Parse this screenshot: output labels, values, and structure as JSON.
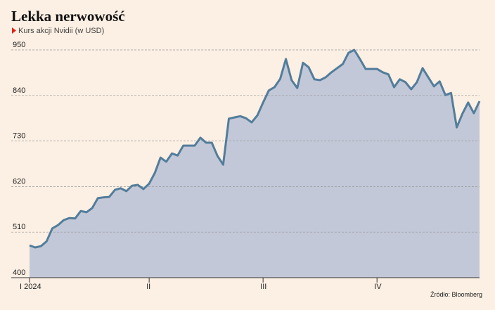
{
  "chart_data": {
    "type": "area",
    "title": "Lekka nerwowość",
    "subtitle": "Kurs akcji Nvidii (w USD)",
    "source": "Źródło: Bloomberg",
    "categories": [
      "I 2024",
      null,
      null,
      null,
      null,
      null,
      null,
      null,
      null,
      null,
      null,
      null,
      null,
      null,
      null,
      null,
      null,
      null,
      null,
      null,
      null,
      "II",
      null,
      null,
      null,
      null,
      null,
      null,
      null,
      null,
      null,
      null,
      null,
      null,
      null,
      null,
      null,
      null,
      null,
      null,
      null,
      "III",
      null,
      null,
      null,
      null,
      null,
      null,
      null,
      null,
      null,
      null,
      null,
      null,
      null,
      null,
      null,
      null,
      null,
      null,
      null,
      "IV",
      null,
      null,
      null,
      null,
      null,
      null,
      null,
      null,
      null,
      null,
      null,
      null,
      null,
      null,
      null,
      null,
      null,
      null
    ],
    "values": [
      478,
      473,
      476,
      488,
      519,
      527,
      539,
      544,
      543,
      561,
      558,
      568,
      592,
      594,
      595,
      612,
      616,
      609,
      622,
      624,
      614,
      627,
      653,
      690,
      680,
      700,
      695,
      719,
      719,
      719,
      738,
      726,
      726,
      694,
      673,
      784,
      787,
      790,
      785,
      775,
      792,
      823,
      852,
      860,
      880,
      928,
      877,
      858,
      919,
      908,
      879,
      877,
      884,
      896,
      906,
      916,
      943,
      950,
      928,
      904,
      904,
      904,
      896,
      891,
      860,
      879,
      872,
      855,
      872,
      906,
      884,
      862,
      874,
      841,
      846,
      763,
      796,
      823,
      797,
      826
    ],
    "color": "#527d9b",
    "fill": "#c2c8d7",
    "ylim": [
      400,
      950
    ],
    "yticks": [
      400,
      510,
      620,
      730,
      840,
      950
    ],
    "grid": true
  }
}
